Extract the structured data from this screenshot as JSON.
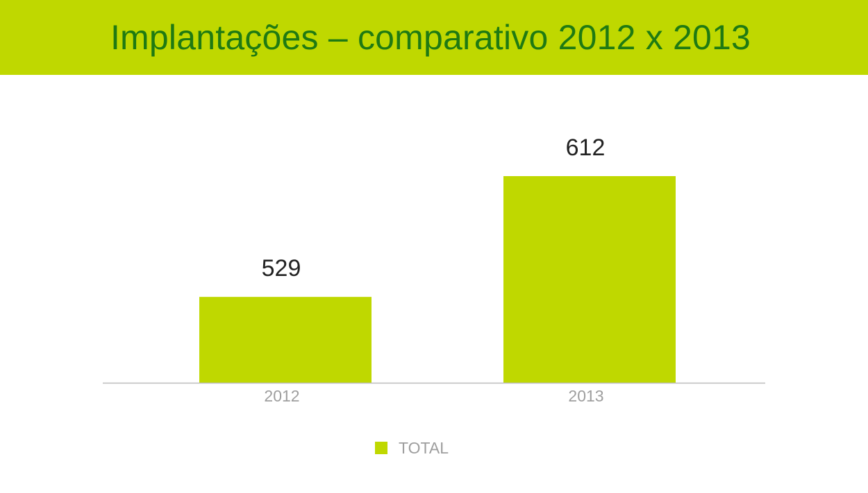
{
  "header": {
    "title": "Implantações – comparativo 2012 x 2013"
  },
  "colors": {
    "header_bg": "#bfd800",
    "title": "#1f7a12",
    "bar": "#bfd800",
    "axis": "#bdbdbd",
    "tick_label": "#9e9e9e",
    "value_label": "#222222"
  },
  "chart_data": {
    "type": "bar",
    "title": "Implantações – comparativo 2012 x 2013",
    "categories": [
      "2012",
      "2013"
    ],
    "series": [
      {
        "name": "TOTAL",
        "values": [
          529,
          612
        ]
      }
    ],
    "data_labels": [
      "529",
      "612"
    ],
    "ylim": [
      470,
      640
    ],
    "grid": false,
    "legend": {
      "position": "bottom",
      "entries": [
        "TOTAL"
      ]
    }
  }
}
